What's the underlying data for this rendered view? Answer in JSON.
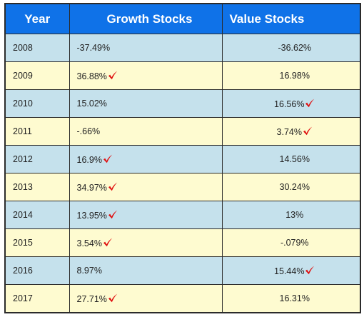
{
  "table": {
    "headers": {
      "year": "Year",
      "growth": "Growth Stocks",
      "value": "Value Stocks"
    },
    "rows": [
      {
        "year": "2008",
        "growth": "-37.49%",
        "value": "-36.62%",
        "winner": "none"
      },
      {
        "year": "2009",
        "growth": "36.88%",
        "value": "16.98%",
        "winner": "growth"
      },
      {
        "year": "2010",
        "growth": "15.02%",
        "value": "16.56%",
        "winner": "value"
      },
      {
        "year": "2011",
        "growth": "-.66%",
        "value": "3.74%",
        "winner": "value"
      },
      {
        "year": "2012",
        "growth": "16.9%",
        "value": "14.56%",
        "winner": "growth"
      },
      {
        "year": "2013",
        "growth": "34.97%",
        "value": "30.24%",
        "winner": "growth"
      },
      {
        "year": "2014",
        "growth": "13.95%",
        "value": "13%",
        "winner": "growth"
      },
      {
        "year": "2015",
        "growth": "3.54%",
        "value": "-.079%",
        "winner": "growth"
      },
      {
        "year": "2016",
        "growth": "8.97%",
        "value": "15.44%",
        "winner": "value"
      },
      {
        "year": "2017",
        "growth": "27.71%",
        "value": "16.31%",
        "winner": "growth"
      }
    ],
    "row_colors": [
      "#c5e1ec",
      "#fefbd0"
    ],
    "header_color": "#0f72e8",
    "check_color": "#e01010",
    "check_icon": "red-checkmark-icon"
  }
}
